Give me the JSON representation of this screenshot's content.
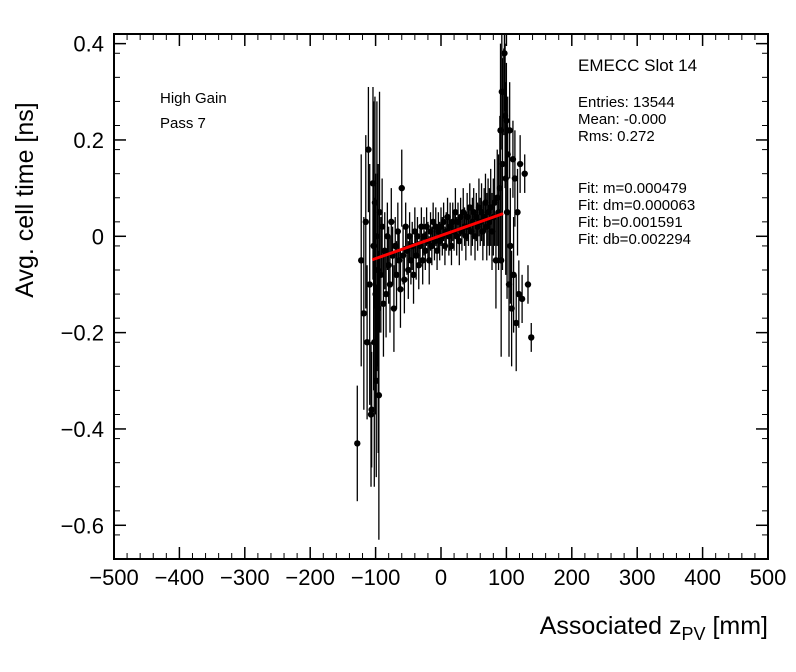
{
  "chart_data": {
    "type": "scatter",
    "title": "",
    "ylabel": "Avg. cell time [ns]",
    "xlabel_parts": {
      "pre": "Associated z",
      "sub": "PV",
      "post": " [mm]"
    },
    "xlim": [
      -500,
      500
    ],
    "ylim": [
      -0.67,
      0.42
    ],
    "x_minor_step": 20,
    "y_minor_step": 0.05,
    "grid": false,
    "xticks": [
      {
        "v": -500,
        "label": "−500"
      },
      {
        "v": -400,
        "label": "−400"
      },
      {
        "v": -300,
        "label": "−300"
      },
      {
        "v": -200,
        "label": "−200"
      },
      {
        "v": -100,
        "label": "−100"
      },
      {
        "v": 0,
        "label": "0"
      },
      {
        "v": 100,
        "label": "100"
      },
      {
        "v": 200,
        "label": "200"
      },
      {
        "v": 300,
        "label": "300"
      },
      {
        "v": 400,
        "label": "400"
      },
      {
        "v": 500,
        "label": "500"
      }
    ],
    "yticks": [
      {
        "v": 0.4,
        "label": "0.4"
      },
      {
        "v": 0.2,
        "label": "0.2"
      },
      {
        "v": 0,
        "label": "0"
      },
      {
        "v": -0.2,
        "label": "−0.2"
      },
      {
        "v": -0.4,
        "label": "−0.4"
      },
      {
        "v": -0.6,
        "label": "−0.6"
      }
    ],
    "annotations": {
      "gain": "High Gain",
      "pass": "Pass 7",
      "slot": "EMECC Slot 14",
      "stats": [
        "Entries: 13544",
        "Mean: -0.000",
        "Rms: 0.272"
      ],
      "fit_lines": [
        "Fit: m=0.000479",
        "Fit: dm=0.000063",
        "Fit: b=0.001591",
        "Fit: db=0.002294"
      ]
    },
    "fit": {
      "m": 0.000479,
      "b": 0.001591,
      "x0": -105,
      "x1": 95,
      "color": "#ff0000"
    },
    "marker_color": "#000000",
    "points": [
      [
        -128,
        -0.43,
        0.12
      ],
      [
        -122,
        -0.05,
        0.22
      ],
      [
        -118,
        -0.16,
        0.2
      ],
      [
        -115,
        0.03,
        0.18
      ],
      [
        -113,
        -0.22,
        0.16
      ],
      [
        -111,
        0.18,
        0.13
      ],
      [
        -109,
        -0.1,
        0.25
      ],
      [
        -107,
        -0.37,
        0.15
      ],
      [
        -106,
        -0.36,
        0.12
      ],
      [
        -104,
        0.11,
        0.2
      ],
      [
        -103,
        -0.02,
        0.3
      ],
      [
        -102,
        -0.22,
        0.3
      ],
      [
        -101,
        0.07,
        0.22
      ],
      [
        -100,
        -0.12,
        0.25
      ],
      [
        -99,
        -0.3,
        0.2
      ],
      [
        -98,
        0.0,
        0.28
      ],
      [
        -97,
        -0.07,
        0.2
      ],
      [
        -96,
        -0.15,
        0.3
      ],
      [
        -95,
        -0.33,
        0.3
      ],
      [
        -94,
        0.05,
        0.25
      ],
      [
        -92,
        -0.08,
        0.12
      ],
      [
        -90,
        0.02,
        0.1
      ],
      [
        -88,
        -0.14,
        0.11
      ],
      [
        -86,
        -0.03,
        0.08
      ],
      [
        -84,
        -0.12,
        0.09
      ],
      [
        -82,
        0.0,
        0.07
      ],
      [
        -80,
        -0.06,
        0.08
      ],
      [
        -78,
        -0.1,
        0.1
      ],
      [
        -76,
        0.03,
        0.07
      ],
      [
        -74,
        -0.04,
        0.06
      ],
      [
        -72,
        -0.15,
        0.09
      ],
      [
        -70,
        -0.02,
        0.06
      ],
      [
        -68,
        -0.08,
        0.07
      ],
      [
        -66,
        0.01,
        0.06
      ],
      [
        -64,
        -0.05,
        0.06
      ],
      [
        -62,
        -0.11,
        0.08
      ],
      [
        -60,
        0.1,
        0.08
      ],
      [
        -58,
        -0.04,
        0.06
      ],
      [
        -56,
        -0.09,
        0.07
      ],
      [
        -54,
        0.02,
        0.05
      ],
      [
        -52,
        -0.03,
        0.05
      ],
      [
        -50,
        -0.07,
        0.06
      ],
      [
        -48,
        0.0,
        0.05
      ],
      [
        -46,
        -0.05,
        0.05
      ],
      [
        -44,
        -0.02,
        0.05
      ],
      [
        -42,
        -0.08,
        0.06
      ],
      [
        -40,
        0.01,
        0.05
      ],
      [
        -38,
        -0.04,
        0.05
      ],
      [
        -36,
        0.0,
        0.04
      ],
      [
        -34,
        -0.06,
        0.05
      ],
      [
        -32,
        -0.02,
        0.04
      ],
      [
        -30,
        0.02,
        0.04
      ],
      [
        -28,
        -0.05,
        0.05
      ],
      [
        -26,
        0.0,
        0.04
      ],
      [
        -24,
        -0.03,
        0.04
      ],
      [
        -22,
        0.02,
        0.04
      ],
      [
        -20,
        -0.01,
        0.04
      ],
      [
        -18,
        -0.05,
        0.05
      ],
      [
        -16,
        0.01,
        0.04
      ],
      [
        -14,
        -0.02,
        0.04
      ],
      [
        -12,
        0.03,
        0.04
      ],
      [
        -10,
        -0.01,
        0.04
      ],
      [
        -8,
        0.02,
        0.04
      ],
      [
        -6,
        -0.03,
        0.04
      ],
      [
        -4,
        0.01,
        0.04
      ],
      [
        -2,
        -0.01,
        0.04
      ],
      [
        0,
        0.02,
        0.04
      ],
      [
        2,
        0.0,
        0.04
      ],
      [
        4,
        0.03,
        0.04
      ],
      [
        6,
        -0.02,
        0.04
      ],
      [
        8,
        0.01,
        0.04
      ],
      [
        10,
        0.04,
        0.04
      ],
      [
        12,
        0.0,
        0.04
      ],
      [
        14,
        0.02,
        0.05
      ],
      [
        16,
        -0.02,
        0.04
      ],
      [
        18,
        0.03,
        0.04
      ],
      [
        20,
        0.01,
        0.04
      ],
      [
        22,
        0.05,
        0.05
      ],
      [
        24,
        0.0,
        0.04
      ],
      [
        26,
        0.03,
        0.04
      ],
      [
        28,
        -0.01,
        0.05
      ],
      [
        30,
        0.04,
        0.04
      ],
      [
        32,
        0.01,
        0.04
      ],
      [
        34,
        0.05,
        0.05
      ],
      [
        36,
        0.02,
        0.04
      ],
      [
        38,
        0.0,
        0.05
      ],
      [
        40,
        0.04,
        0.05
      ],
      [
        42,
        0.02,
        0.04
      ],
      [
        44,
        0.06,
        0.05
      ],
      [
        46,
        0.01,
        0.05
      ],
      [
        48,
        0.03,
        0.05
      ],
      [
        50,
        0.05,
        0.05
      ],
      [
        52,
        0.0,
        0.05
      ],
      [
        54,
        0.04,
        0.05
      ],
      [
        56,
        0.02,
        0.05
      ],
      [
        58,
        0.06,
        0.06
      ],
      [
        60,
        0.03,
        0.05
      ],
      [
        62,
        0.05,
        0.06
      ],
      [
        64,
        0.01,
        0.06
      ],
      [
        66,
        0.04,
        0.06
      ],
      [
        68,
        0.07,
        0.06
      ],
      [
        70,
        0.02,
        0.07
      ],
      [
        72,
        0.05,
        0.07
      ],
      [
        74,
        0.03,
        0.07
      ],
      [
        76,
        0.06,
        0.08
      ],
      [
        78,
        0.01,
        0.08
      ],
      [
        80,
        0.04,
        0.08
      ],
      [
        82,
        0.07,
        0.09
      ],
      [
        84,
        -0.05,
        0.1
      ],
      [
        86,
        0.08,
        0.1
      ],
      [
        88,
        0.05,
        0.12
      ],
      [
        90,
        0.1,
        0.15
      ],
      [
        91,
        0.22,
        0.18
      ],
      [
        92,
        -0.05,
        0.2
      ],
      [
        93,
        0.3,
        0.12
      ],
      [
        94,
        0.15,
        0.22
      ],
      [
        96,
        0.3,
        0.09
      ],
      [
        97,
        0.38,
        0.12
      ],
      [
        98,
        0.25,
        0.15
      ],
      [
        99,
        0.12,
        0.2
      ],
      [
        100,
        0.24,
        0.12
      ],
      [
        101,
        0.05,
        0.18
      ],
      [
        102,
        0.17,
        0.12
      ],
      [
        104,
        -0.1,
        0.15
      ],
      [
        105,
        0.22,
        0.1
      ],
      [
        106,
        -0.02,
        0.12
      ],
      [
        108,
        -0.15,
        0.12
      ],
      [
        110,
        0.16,
        0.08
      ],
      [
        111,
        -0.08,
        0.12
      ],
      [
        113,
        0.12,
        0.1
      ],
      [
        115,
        -0.18,
        0.1
      ],
      [
        117,
        0.05,
        0.09
      ],
      [
        119,
        -0.12,
        0.07
      ],
      [
        121,
        0.15,
        0.06
      ],
      [
        124,
        -0.13,
        0.05
      ],
      [
        128,
        0.13,
        0.04
      ],
      [
        133,
        -0.1,
        0.04
      ],
      [
        138,
        -0.21,
        0.03
      ]
    ]
  }
}
